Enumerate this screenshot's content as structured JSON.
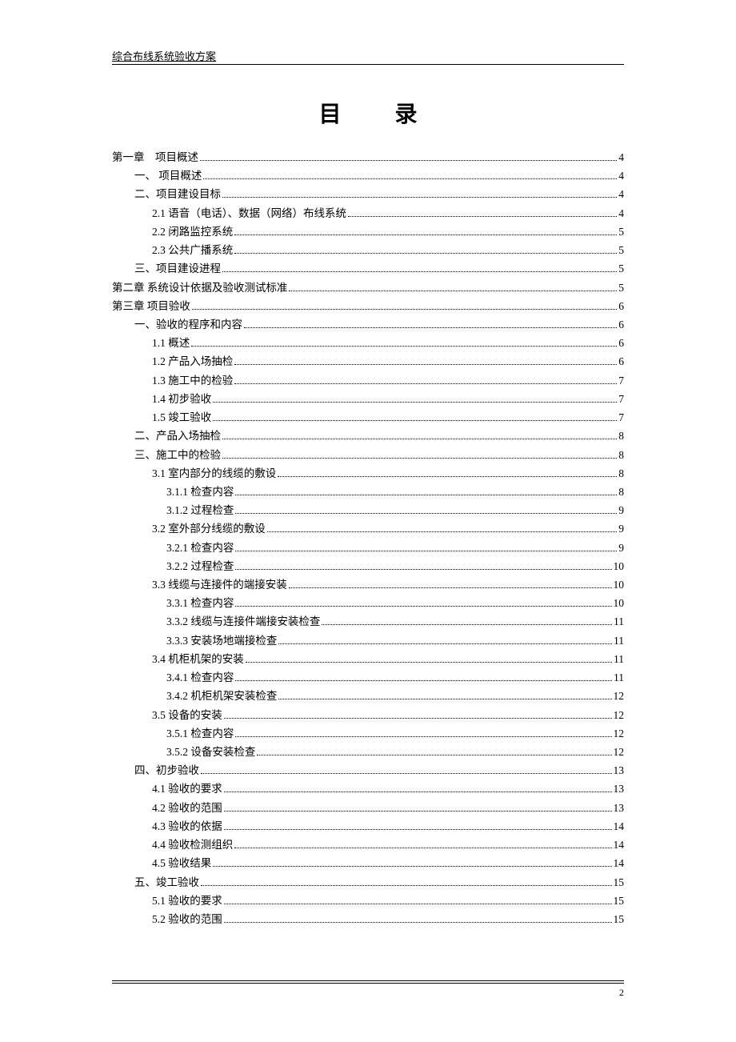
{
  "header": "综合布线系统验收方案",
  "title": "目 录",
  "page_number": "2",
  "toc": [
    {
      "level": 0,
      "label": "第一章　项目概述 ",
      "page": "4"
    },
    {
      "level": 1,
      "label": "一、 项目概述 ",
      "page": "4"
    },
    {
      "level": 1,
      "label": "二、项目建设目标",
      "page": "4"
    },
    {
      "level": 2,
      "label": "2.1 语音（电话）、数据（网络）布线系统",
      "page": "4"
    },
    {
      "level": 2,
      "label": "2.2 闭路监控系统",
      "page": "5"
    },
    {
      "level": 2,
      "label": "2.3 公共广播系统",
      "page": "5"
    },
    {
      "level": 1,
      "label": "三、项目建设进程",
      "page": "5"
    },
    {
      "level": 0,
      "label": "第二章 系统设计依据及验收测试标准",
      "page": "5"
    },
    {
      "level": 0,
      "label": "第三章 项目验收",
      "page": "6"
    },
    {
      "level": 1,
      "label": "一、验收的程序和内容",
      "page": "6"
    },
    {
      "level": 2,
      "label": "1.1 概述",
      "page": "6"
    },
    {
      "level": 2,
      "label": "1.2 产品入场抽检",
      "page": "6"
    },
    {
      "level": 2,
      "label": "1.3 施工中的检验",
      "page": "7"
    },
    {
      "level": 2,
      "label": "1.4 初步验收",
      "page": "7"
    },
    {
      "level": 2,
      "label": "1.5 竣工验收",
      "page": "7"
    },
    {
      "level": 1,
      "label": "二、产品入场抽检",
      "page": "8"
    },
    {
      "level": 1,
      "label": "三、施工中的检验",
      "page": "8"
    },
    {
      "level": 2,
      "label": "3.1 室内部分的线缆的敷设",
      "page": "8"
    },
    {
      "level": 3,
      "label": "3.1.1 检查内容 ",
      "page": "8"
    },
    {
      "level": 3,
      "label": "3.1.2 过程检查 ",
      "page": "9"
    },
    {
      "level": 2,
      "label": "3.2 室外部分线缆的敷设",
      "page": "9"
    },
    {
      "level": 3,
      "label": "3.2.1 检查内容 ",
      "page": "9"
    },
    {
      "level": 3,
      "label": "3.2.2 过程检查 ",
      "page": "10"
    },
    {
      "level": 2,
      "label": "3.3 线缆与连接件的端接安装",
      "page": "10"
    },
    {
      "level": 3,
      "label": "3.3.1 检查内容 ",
      "page": "10"
    },
    {
      "level": 3,
      "label": "3.3.2 线缆与连接件端接安装检查 ",
      "page": "11"
    },
    {
      "level": 3,
      "label": "3.3.3 安装场地端接检查 ",
      "page": "11"
    },
    {
      "level": 2,
      "label": "3.4 机柜机架的安装",
      "page": "11"
    },
    {
      "level": 3,
      "label": "3.4.1 检查内容 ",
      "page": "11"
    },
    {
      "level": 3,
      "label": "3.4.2 机柜机架安装检查 ",
      "page": "12"
    },
    {
      "level": 2,
      "label": "3.5 设备的安装",
      "page": "12"
    },
    {
      "level": 3,
      "label": "3.5.1 检查内容 ",
      "page": "12"
    },
    {
      "level": 3,
      "label": "3.5.2 设备安装检查 ",
      "page": "12"
    },
    {
      "level": 1,
      "label": "四、初步验收",
      "page": "13"
    },
    {
      "level": 2,
      "label": "4.1 验收的要求",
      "page": "13"
    },
    {
      "level": 2,
      "label": "4.2 验收的范围",
      "page": "13"
    },
    {
      "level": 2,
      "label": "4.3 验收的依据",
      "page": "14"
    },
    {
      "level": 2,
      "label": "4.4 验收检测组织",
      "page": "14"
    },
    {
      "level": 2,
      "label": "4.5 验收结果",
      "page": "14"
    },
    {
      "level": 1,
      "label": "五、竣工验收",
      "page": "15"
    },
    {
      "level": 2,
      "label": "5.1 验收的要求",
      "page": "15"
    },
    {
      "level": 2,
      "label": "5.2 验收的范围",
      "page": "15"
    }
  ]
}
